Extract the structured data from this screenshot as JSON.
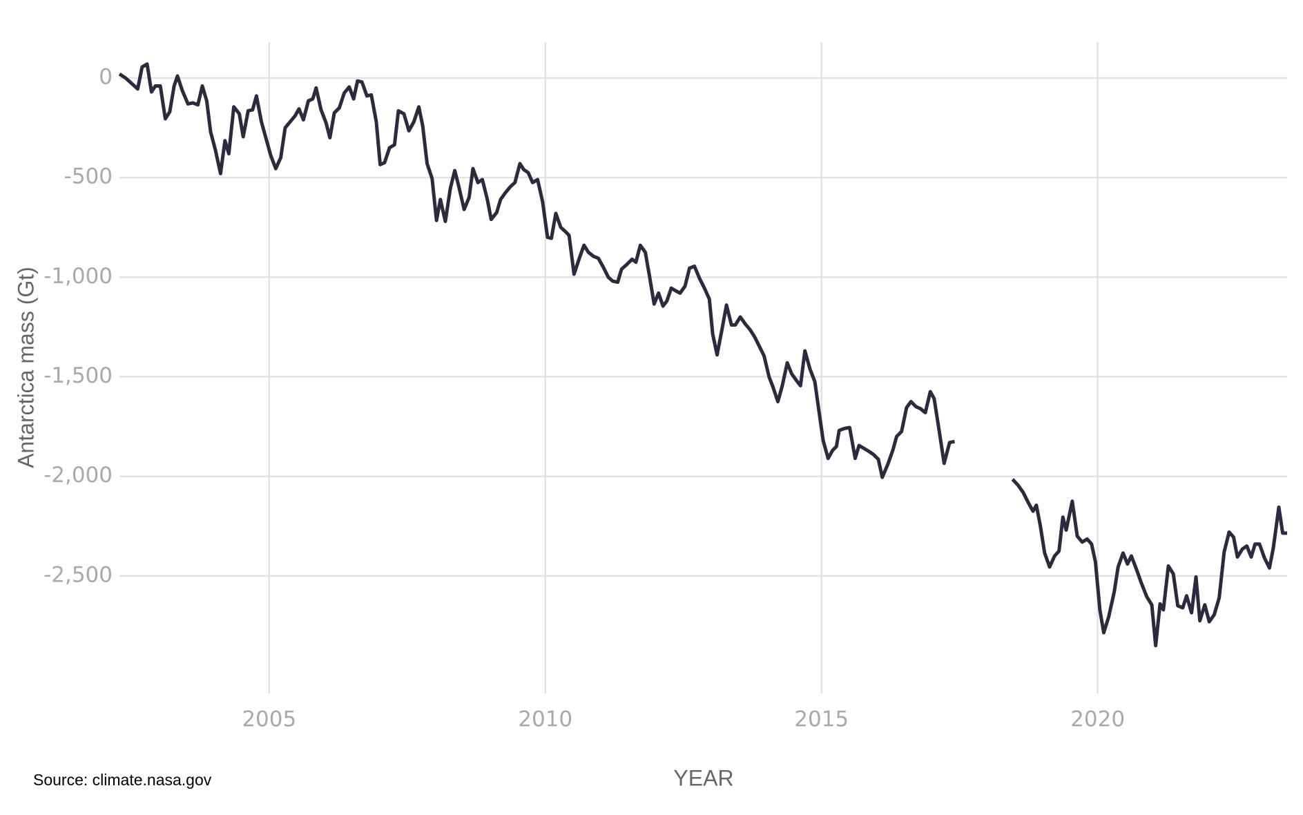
{
  "chart_data": {
    "type": "line",
    "y_label": "Antarctica mass (Gt)",
    "x_label": "YEAR",
    "note": "Source: climate.nasa.gov",
    "xlim": [
      2002.29,
      2023.43
    ],
    "ylim": [
      -3090,
      180
    ],
    "xticks": [
      2005,
      2010,
      2015,
      2020
    ],
    "yticks": [
      0,
      -500,
      {
        "value": -1000,
        "label": "-1,000"
      },
      {
        "value": -1500,
        "label": "-1,500"
      },
      {
        "value": -2000,
        "label": "-2,000"
      },
      {
        "value": -2500,
        "label": "-2,500"
      }
    ],
    "grid": true,
    "x": [
      2002.29,
      2002.4,
      2002.62,
      2002.7,
      2002.79,
      2002.87,
      2002.94,
      2003.03,
      2003.12,
      2003.2,
      2003.28,
      2003.34,
      2003.43,
      2003.53,
      2003.62,
      2003.71,
      2003.79,
      2003.87,
      2003.94,
      2004.03,
      2004.12,
      2004.2,
      2004.27,
      2004.36,
      2004.46,
      2004.53,
      2004.62,
      2004.7,
      2004.77,
      2004.86,
      2004.94,
      2005.03,
      2005.12,
      2005.21,
      2005.29,
      2005.38,
      2005.47,
      2005.54,
      2005.62,
      2005.71,
      2005.79,
      2005.85,
      2005.94,
      2006.03,
      2006.1,
      2006.18,
      2006.27,
      2006.36,
      2006.45,
      2006.53,
      2006.6,
      2006.68,
      2006.77,
      2006.85,
      2006.94,
      2007.01,
      2007.09,
      2007.18,
      2007.27,
      2007.34,
      2007.44,
      2007.53,
      2007.62,
      2007.71,
      2007.78,
      2007.86,
      2007.95,
      2008.03,
      2008.1,
      2008.19,
      2008.28,
      2008.36,
      2008.43,
      2008.53,
      2008.62,
      2008.69,
      2008.78,
      2008.86,
      2008.95,
      2009.02,
      2009.12,
      2009.19,
      2009.28,
      2009.37,
      2009.45,
      2009.54,
      2009.61,
      2009.69,
      2009.77,
      2009.86,
      2009.95,
      2010.04,
      2010.11,
      2010.19,
      2010.28,
      2010.36,
      2010.43,
      2010.52,
      2010.61,
      2010.7,
      2010.78,
      2010.87,
      2010.96,
      2011.05,
      2011.14,
      2011.22,
      2011.31,
      2011.38,
      2011.48,
      2011.57,
      2011.64,
      2011.72,
      2011.81,
      2011.88,
      2011.97,
      2012.05,
      2012.13,
      2012.2,
      2012.28,
      2012.37,
      2012.44,
      2012.53,
      2012.61,
      2012.7,
      2012.79,
      2012.88,
      2012.97,
      2013.03,
      2013.11,
      2013.2,
      2013.28,
      2013.37,
      2013.44,
      2013.53,
      2013.62,
      2013.71,
      2013.79,
      2013.88,
      2013.96,
      2014.05,
      2014.12,
      2014.21,
      2014.29,
      2014.38,
      2014.46,
      2014.55,
      2014.62,
      2014.7,
      2014.79,
      2014.88,
      2014.95,
      2015.03,
      2015.12,
      2015.2,
      2015.27,
      2015.32,
      2015.41,
      2015.51,
      2015.61,
      2015.68,
      2015.77,
      2015.86,
      2015.94,
      2016.03,
      2016.1,
      2016.2,
      2016.29,
      2016.36,
      2016.45,
      2016.54,
      2016.62,
      2016.71,
      2016.79,
      2016.88,
      2016.97,
      2017.04,
      2017.13,
      2017.22,
      2017.32,
      2017.41,
      2017.9,
      2018.46,
      2018.56,
      2018.65,
      2018.74,
      2018.83,
      2018.89,
      2018.96,
      2019.04,
      2019.13,
      2019.22,
      2019.3,
      2019.37,
      2019.43,
      2019.54,
      2019.63,
      2019.72,
      2019.81,
      2019.89,
      2019.96,
      2020.04,
      2020.11,
      2020.2,
      2020.3,
      2020.37,
      2020.46,
      2020.54,
      2020.61,
      2020.7,
      2020.79,
      2020.89,
      2020.98,
      2021.05,
      2021.13,
      2021.19,
      2021.28,
      2021.37,
      2021.45,
      2021.54,
      2021.61,
      2021.7,
      2021.78,
      2021.85,
      2021.94,
      2022.02,
      2022.11,
      2022.2,
      2022.29,
      2022.38,
      2022.46,
      2022.53,
      2022.62,
      2022.7,
      2022.78,
      2022.85,
      2022.93,
      2023.02,
      2023.11,
      2023.18,
      2023.28,
      2023.35,
      2023.43
    ],
    "series": [
      {
        "name": "Antarctica mass",
        "color": "#2c2940",
        "values": [
          20,
          0,
          -55,
          55,
          70,
          -70,
          -40,
          -40,
          -205,
          -170,
          -40,
          10,
          -65,
          -130,
          -125,
          -135,
          -40,
          -115,
          -270,
          -365,
          -480,
          -315,
          -380,
          -145,
          -180,
          -295,
          -165,
          -160,
          -90,
          -220,
          -300,
          -390,
          -455,
          -400,
          -250,
          -220,
          -190,
          -155,
          -210,
          -115,
          -105,
          -50,
          -160,
          -225,
          -300,
          -175,
          -150,
          -75,
          -45,
          -105,
          -15,
          -20,
          -90,
          -85,
          -220,
          -435,
          -425,
          -350,
          -335,
          -165,
          -180,
          -265,
          -220,
          -145,
          -240,
          -430,
          -505,
          -715,
          -610,
          -720,
          -555,
          -465,
          -540,
          -660,
          -600,
          -455,
          -525,
          -510,
          -610,
          -710,
          -675,
          -610,
          -575,
          -545,
          -525,
          -430,
          -460,
          -475,
          -525,
          -510,
          -620,
          -800,
          -805,
          -680,
          -750,
          -770,
          -790,
          -985,
          -910,
          -840,
          -875,
          -895,
          -905,
          -950,
          -1000,
          -1020,
          -1025,
          -960,
          -935,
          -910,
          -925,
          -840,
          -875,
          -985,
          -1135,
          -1080,
          -1145,
          -1120,
          -1055,
          -1070,
          -1080,
          -1045,
          -955,
          -945,
          -1005,
          -1055,
          -1110,
          -1285,
          -1390,
          -1260,
          -1140,
          -1240,
          -1240,
          -1200,
          -1235,
          -1265,
          -1300,
          -1350,
          -1395,
          -1500,
          -1550,
          -1625,
          -1545,
          -1430,
          -1485,
          -1520,
          -1545,
          -1370,
          -1460,
          -1525,
          -1665,
          -1820,
          -1910,
          -1870,
          -1850,
          -1770,
          -1760,
          -1755,
          -1910,
          -1845,
          -1860,
          -1875,
          -1890,
          -1915,
          -2005,
          -1940,
          -1870,
          -1800,
          -1775,
          -1655,
          -1625,
          -1650,
          -1660,
          -1680,
          -1575,
          -1610,
          -1770,
          -1935,
          -1830,
          -1825,
          null,
          -2015,
          -2045,
          -2080,
          -2130,
          -2175,
          -2145,
          -2245,
          -2385,
          -2455,
          -2400,
          -2375,
          -2205,
          -2270,
          -2125,
          -2300,
          -2330,
          -2315,
          -2340,
          -2430,
          -2670,
          -2785,
          -2705,
          -2580,
          -2455,
          -2385,
          -2440,
          -2400,
          -2465,
          -2535,
          -2605,
          -2645,
          -2850,
          -2640,
          -2670,
          -2450,
          -2490,
          -2650,
          -2660,
          -2600,
          -2685,
          -2505,
          -2725,
          -2645,
          -2730,
          -2695,
          -2610,
          -2380,
          -2280,
          -2305,
          -2405,
          -2365,
          -2350,
          -2405,
          -2340,
          -2340,
          -2410,
          -2460,
          -2360,
          -2155,
          -2285,
          -2285
        ]
      }
    ]
  }
}
